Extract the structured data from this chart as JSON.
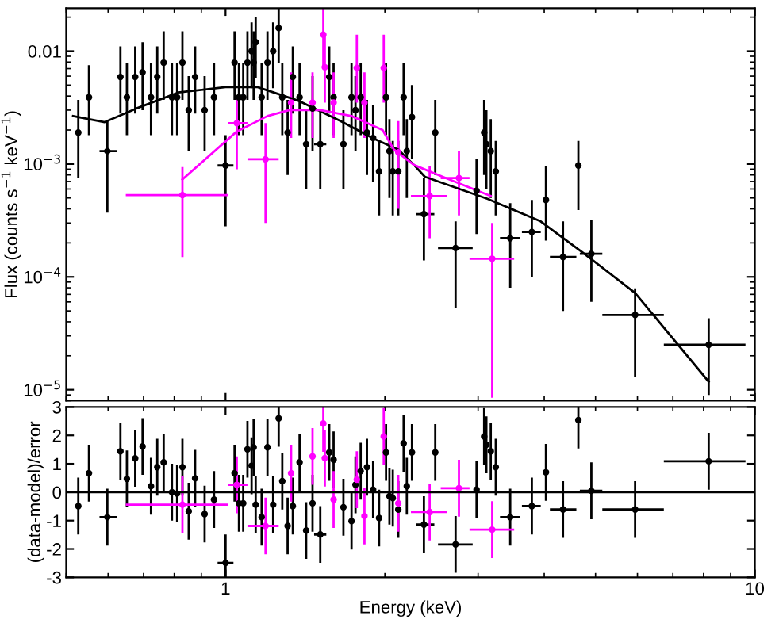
{
  "chart_data": [
    {
      "type": "scatter",
      "ylabel": "Flux (counts s$^{−1}$ keV$^{−1}$)",
      "log": "xy",
      "xlim": [
        0.5,
        10
      ],
      "ylim": [
        8e-06,
        0.024
      ],
      "xticks": [
        {
          "value": 1,
          "label": null
        },
        {
          "value": 10,
          "label": null
        }
      ],
      "yticks": [
        {
          "value": 1e-05,
          "label": "10$^{−5}$"
        },
        {
          "value": 0.0001,
          "label": "10$^{−4}$"
        },
        {
          "value": 0.001,
          "label": "10$^{−3}$"
        },
        0.01
      ],
      "tick_labels": "y",
      "grid": false,
      "legend": false,
      "series": [
        {
          "marker": "circle",
          "color": "#000000",
          "x": [
            0.527,
            0.552,
            0.598,
            0.633,
            0.651,
            0.675,
            0.697,
            0.723,
            0.743,
            0.764,
            0.792,
            0.81,
            0.829,
            0.852,
            0.876,
            0.913,
            0.951,
            1.0,
            1.04,
            1.06,
            1.08,
            1.1,
            1.12,
            1.13,
            1.14,
            1.17,
            1.2,
            1.23,
            1.26,
            1.28,
            1.31,
            1.34,
            1.38,
            1.42,
            1.46,
            1.51,
            1.57,
            1.6,
            1.67,
            1.73,
            1.76,
            1.8,
            1.85,
            1.9,
            1.95,
            2.07,
            2.01,
            2.04,
            2.12,
            2.17,
            2.2,
            2.25,
            2.37,
            2.49,
            2.72,
            2.98,
            3.08,
            3.11,
            3.17,
            3.24,
            3.45,
            3.79,
            4.03,
            4.34,
            4.64,
            4.91,
            5.94,
            8.18
          ],
          "values": [
            0.0019,
            0.0039,
            0.0013,
            0.0059,
            0.0039,
            0.0059,
            0.0065,
            0.0039,
            0.0059,
            0.0079,
            0.0039,
            0.0039,
            0.0079,
            0.003,
            0.0059,
            0.003,
            0.0039,
            0.00097,
            0.0079,
            0.0039,
            0.0039,
            0.0079,
            0.01,
            0.0079,
            0.012,
            0.0039,
            0.0079,
            0.01,
            0.016,
            0.0039,
            0.0019,
            0.0059,
            0.0039,
            0.0015,
            0.0031,
            0.0015,
            0.0059,
            0.0039,
            0.0015,
            0.0039,
            0.003,
            0.0039,
            0.0019,
            0.0017,
            0.00086,
            0.00086,
            0.0039,
            0.0013,
            0.00086,
            0.0039,
            0.0013,
            0.0026,
            0.00036,
            0.0019,
            0.00018,
            0.00058,
            0.0019,
            0.0015,
            0.0013,
            0.00086,
            0.00022,
            0.00025,
            0.00048,
            0.00015,
            0.00097,
            0.00016,
            4.6e-05,
            2.5e-05
          ],
          "errors": [
            [
              0.00075,
              0.0037
            ],
            [
              0.0018,
              0.0075
            ],
            [
              0.00037,
              0.0024
            ],
            [
              0.0028,
              0.011
            ],
            [
              0.0018,
              0.0078
            ],
            [
              0.0028,
              0.011
            ],
            [
              0.003,
              0.012
            ],
            [
              0.0018,
              0.0078
            ],
            [
              0.0028,
              0.011
            ],
            [
              0.0037,
              0.015
            ],
            [
              0.0018,
              0.0078
            ],
            [
              0.0018,
              0.0078
            ],
            [
              0.0037,
              0.015
            ],
            [
              0.0013,
              0.006
            ],
            [
              0.0028,
              0.011
            ],
            [
              0.0013,
              0.006
            ],
            [
              0.0018,
              0.0078
            ],
            [
              0.00028,
              0.0018
            ],
            [
              0.0037,
              0.015
            ],
            [
              0.0018,
              0.0078
            ],
            [
              0.0018,
              0.0078
            ],
            [
              0.0037,
              0.015
            ],
            [
              0.0047,
              0.018
            ],
            [
              0.0037,
              0.015
            ],
            [
              0.0058,
              0.02
            ],
            [
              0.0018,
              0.0078
            ],
            [
              0.0037,
              0.015
            ],
            [
              0.0047,
              0.018
            ],
            [
              0.0078,
              0.024
            ],
            [
              0.0018,
              0.0078
            ],
            [
              0.0008,
              0.0037
            ],
            [
              0.0028,
              0.011
            ],
            [
              0.0018,
              0.0078
            ],
            [
              0.0006,
              0.003
            ],
            [
              0.0013,
              0.006
            ],
            [
              0.0006,
              0.003
            ],
            [
              0.0028,
              0.011
            ],
            [
              0.0018,
              0.0078
            ],
            [
              0.0006,
              0.003
            ],
            [
              0.0018,
              0.0078
            ],
            [
              0.0013,
              0.006
            ],
            [
              0.0018,
              0.0078
            ],
            [
              0.0008,
              0.0037
            ],
            [
              0.0007,
              0.0033
            ],
            [
              0.00035,
              0.0016
            ],
            [
              0.00035,
              0.0016
            ],
            [
              0.0018,
              0.0078
            ],
            [
              0.0005,
              0.0025
            ],
            [
              0.00035,
              0.0016
            ],
            [
              0.0018,
              0.0078
            ],
            [
              0.0005,
              0.0025
            ],
            [
              0.0011,
              0.005
            ],
            [
              0.00014,
              0.00075
            ],
            [
              0.0008,
              0.0037
            ],
            [
              5.3e-05,
              0.00031
            ],
            [
              0.00024,
              0.0011
            ],
            [
              0.0008,
              0.0037
            ],
            [
              0.0006,
              0.003
            ],
            [
              0.0005,
              0.0025
            ],
            [
              0.00035,
              0.0016
            ],
            [
              8e-05,
              0.00045
            ],
            [
              0.0001,
              0.00048
            ],
            [
              0.00021,
              0.00095
            ],
            [
              5e-05,
              0.00031
            ],
            [
              0.00039,
              0.0016
            ],
            [
              6e-05,
              0.00032
            ],
            [
              1.3e-05,
              7.9e-05
            ],
            [
              9e-06,
              4.3e-05
            ]
          ],
          "xerrors": [
            null,
            null,
            [
              0.578,
              0.623
            ],
            null,
            null,
            null,
            null,
            null,
            null,
            null,
            null,
            null,
            null,
            null,
            null,
            null,
            null,
            [
              0.966,
              1.035
            ],
            null,
            null,
            null,
            null,
            null,
            null,
            null,
            null,
            null,
            null,
            null,
            null,
            null,
            null,
            null,
            null,
            null,
            [
              1.47,
              1.55
            ],
            null,
            null,
            null,
            null,
            null,
            null,
            null,
            null,
            null,
            null,
            null,
            null,
            null,
            null,
            null,
            null,
            [
              2.29,
              2.48
            ],
            null,
            [
              2.52,
              2.93
            ],
            null,
            null,
            null,
            null,
            null,
            [
              3.3,
              3.6
            ],
            [
              3.63,
              3.94
            ],
            null,
            [
              4.1,
              4.6
            ],
            null,
            [
              4.67,
              5.15
            ],
            [
              5.15,
              6.73
            ],
            [
              6.73,
              9.6
            ]
          ]
        },
        {
          "marker": "circle",
          "color": "#ff00ff",
          "x": [
            0.829,
            1.05,
            1.19,
            1.33,
            1.46,
            1.53,
            1.54,
            1.6,
            1.77,
            1.83,
            1.99,
            2.12,
            2.43,
            2.76,
            3.19
          ],
          "values": [
            0.00053,
            0.0023,
            0.0011,
            0.0035,
            0.0035,
            0.014,
            0.0072,
            0.0035,
            0.0071,
            0.0035,
            0.0071,
            0.00127,
            0.00052,
            0.00075,
            0.000145
          ],
          "errors": [
            [
              0.00015,
              0.00094
            ],
            [
              0.0009,
              0.004
            ],
            [
              0.0003,
              0.0023
            ],
            [
              0.0017,
              0.0065
            ],
            [
              0.0017,
              0.0065
            ],
            [
              0.0072,
              0.024
            ],
            [
              0.0035,
              0.014
            ],
            [
              0.0017,
              0.0065
            ],
            [
              0.0035,
              0.014
            ],
            [
              0.0017,
              0.0065
            ],
            [
              0.0035,
              0.014
            ],
            [
              0.0004,
              0.0024
            ],
            [
              0.00022,
              0.00095
            ],
            [
              0.00035,
              0.0013
            ],
            [
              8.5e-06,
              0.0003
            ]
          ],
          "xerrors": [
            [
              0.648,
              1.01
            ],
            [
              1.01,
              1.1
            ],
            [
              1.1,
              1.26
            ],
            null,
            null,
            null,
            null,
            null,
            null,
            null,
            null,
            null,
            [
              2.24,
              2.62
            ],
            [
              2.55,
              2.89
            ],
            [
              2.89,
              3.51
            ]
          ]
        },
        {
          "type": "line",
          "line_style": "solid",
          "color": "#000000",
          "x": [
            0.515,
            0.591,
            0.678,
            0.814,
            1.0,
            1.15,
            1.38,
            1.65,
            1.9,
            2.12,
            2.27,
            2.38,
            3.13,
            3.94,
            4.73,
            5.94,
            8.18
          ],
          "values": [
            0.00266,
            0.00235,
            0.0031,
            0.0043,
            0.0048,
            0.0048,
            0.0036,
            0.0024,
            0.00169,
            0.00134,
            0.00098,
            0.00077,
            0.00049,
            0.00031,
            0.000164,
            7.2e-05,
            1.18e-05
          ]
        },
        {
          "type": "line",
          "line_style": "solid",
          "color": "#ff00ff",
          "x": [
            0.829,
            1.05,
            1.2,
            1.32,
            1.51,
            1.73,
            1.98,
            2.08,
            2.27,
            2.61,
            3.17
          ],
          "values": [
            0.00073,
            0.00194,
            0.00266,
            0.003,
            0.003,
            0.00266,
            0.002,
            0.00134,
            0.00098,
            0.00075,
            0.00052
          ]
        }
      ]
    },
    {
      "type": "scatter",
      "xlabel": "Energy (keV)",
      "ylabel": "(data-model)/error",
      "log": "x",
      "xlim": [
        0.5,
        10
      ],
      "ylim": [
        -3,
        3
      ],
      "xticks": [
        1,
        10
      ],
      "yticks": [
        -3,
        -2,
        -1,
        0,
        1,
        2,
        3
      ],
      "grid": false,
      "legend": false,
      "ref_lines": [
        {
          "axis": "y",
          "value": 0,
          "color": "#000000"
        }
      ],
      "series": [
        {
          "marker": "circle",
          "color": "#000000",
          "x": [
            0.527,
            0.552,
            0.598,
            0.633,
            0.651,
            0.675,
            0.697,
            0.723,
            0.743,
            0.764,
            0.792,
            0.81,
            0.829,
            0.852,
            0.876,
            0.913,
            0.951,
            1.0,
            1.04,
            1.06,
            1.08,
            1.1,
            1.12,
            1.13,
            1.14,
            1.17,
            1.2,
            1.23,
            1.26,
            1.28,
            1.31,
            1.34,
            1.38,
            1.42,
            1.46,
            1.51,
            1.57,
            1.6,
            1.67,
            1.73,
            1.76,
            1.8,
            1.85,
            1.9,
            1.95,
            2.07,
            2.01,
            2.04,
            2.12,
            2.17,
            2.2,
            2.25,
            2.37,
            2.49,
            2.72,
            2.98,
            3.08,
            3.11,
            3.17,
            3.24,
            3.45,
            3.79,
            4.03,
            4.34,
            4.64,
            4.91,
            5.94,
            8.18
          ],
          "values": [
            -0.49,
            0.67,
            -0.88,
            1.44,
            0.47,
            1.19,
            1.61,
            0.21,
            0.88,
            1.05,
            0,
            -0.05,
            0.88,
            -0.67,
            0.49,
            -0.77,
            -0.26,
            -2.49,
            0.67,
            -0.39,
            -0.39,
            1.51,
            0.93,
            1.58,
            -0.44,
            -0.88,
            1.58,
            -0.44,
            2.6,
            0.39,
            -1.19,
            -0.49,
            1.05,
            -1.35,
            -0.39,
            -1.49,
            1.4,
            1.14,
            -0.53,
            -1.02,
            0.26,
            0.74,
            0.88,
            0.09,
            -0.91,
            -0.21,
            1.4,
            -0.14,
            -0.61,
            1.72,
            0.21,
            1.4,
            -1.14,
            1.4,
            -1.84,
            0.09,
            1.96,
            1.67,
            1.44,
            0.88,
            -0.88,
            -0.49,
            0.7,
            -0.61,
            2.54,
            0.05,
            -0.61,
            1.09
          ],
          "errors": [
            1,
            1,
            1,
            1,
            1,
            1,
            1,
            1,
            1,
            1,
            1,
            1,
            1,
            1,
            1,
            1,
            1,
            [
              -3,
              -1.49
            ],
            1,
            1,
            1,
            1,
            1,
            1,
            1,
            1,
            1,
            1,
            [
              1.6,
              3
            ],
            1,
            1,
            1,
            1,
            1,
            1,
            1,
            1,
            1,
            1,
            1,
            1,
            1,
            1,
            1,
            1,
            1,
            1,
            1,
            1,
            1,
            1,
            1,
            1,
            1,
            1,
            1,
            1,
            1,
            1,
            1,
            1,
            1,
            1,
            1,
            [
              1.54,
              3
            ],
            1,
            1,
            1
          ],
          "xerrors": [
            null,
            null,
            [
              0.578,
              0.623
            ],
            null,
            null,
            null,
            null,
            null,
            null,
            null,
            null,
            null,
            null,
            null,
            null,
            null,
            null,
            [
              0.966,
              1.035
            ],
            null,
            null,
            null,
            null,
            null,
            null,
            null,
            null,
            null,
            null,
            null,
            null,
            null,
            null,
            null,
            null,
            null,
            [
              1.47,
              1.55
            ],
            null,
            null,
            null,
            null,
            null,
            null,
            null,
            null,
            null,
            null,
            null,
            null,
            null,
            null,
            null,
            null,
            [
              2.29,
              2.48
            ],
            null,
            [
              2.52,
              2.93
            ],
            null,
            null,
            null,
            null,
            null,
            [
              3.3,
              3.6
            ],
            [
              3.63,
              3.94
            ],
            null,
            [
              4.1,
              4.6
            ],
            null,
            [
              4.67,
              5.15
            ],
            [
              5.15,
              6.73
            ],
            [
              6.73,
              9.6
            ]
          ]
        },
        {
          "marker": "circle",
          "color": "#ff00ff",
          "x": [
            0.829,
            1.05,
            1.19,
            1.33,
            1.46,
            1.53,
            1.54,
            1.6,
            1.77,
            1.83,
            1.99,
            2.12,
            2.43,
            2.76,
            3.19
          ],
          "values": [
            -0.44,
            0.26,
            -1.19,
            0.67,
            1.26,
            2.42,
            1.2,
            -0.26,
            0.44,
            -0.84,
            1.96,
            -0.39,
            -0.7,
            0.14,
            -1.32
          ],
          "errors": [
            1,
            1,
            1,
            1,
            1,
            [
              1.42,
              3
            ],
            1,
            1,
            1,
            1,
            1,
            1,
            1,
            1,
            1
          ],
          "xerrors": [
            [
              0.648,
              1.01
            ],
            [
              1.01,
              1.1
            ],
            [
              1.1,
              1.26
            ],
            null,
            null,
            null,
            null,
            null,
            null,
            null,
            null,
            null,
            [
              2.24,
              2.62
            ],
            [
              2.55,
              2.89
            ],
            [
              2.89,
              3.51
            ]
          ]
        }
      ]
    }
  ]
}
